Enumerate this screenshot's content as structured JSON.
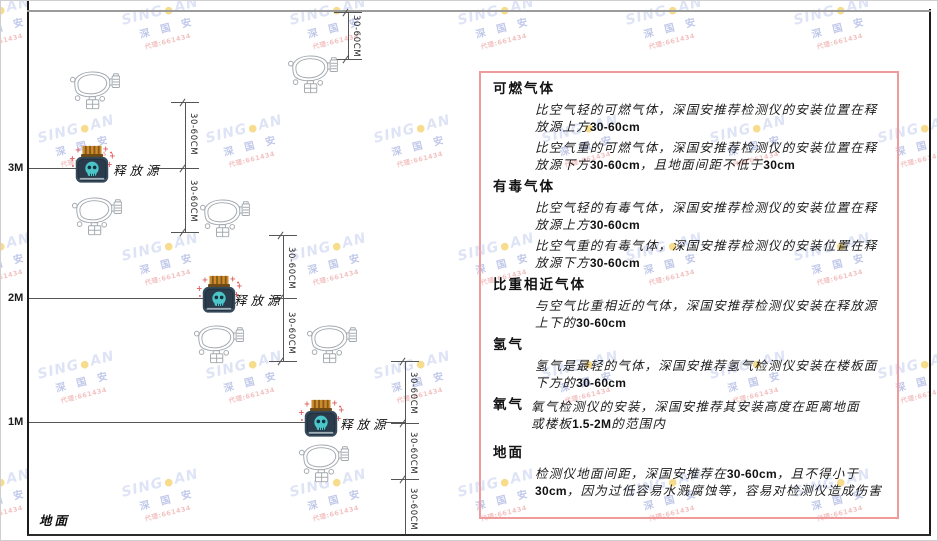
{
  "watermark": {
    "brand_left": "SING",
    "dot": "●",
    "brand_right": "AN",
    "cjk": "深 国 安",
    "sub": "代理:661434"
  },
  "diagram": {
    "dim_label": "30-60CM",
    "release_source_label": "释放源",
    "ground_label": "地面",
    "heights": [
      {
        "label": "3M"
      },
      {
        "label": "2M"
      },
      {
        "label": "1M"
      }
    ]
  },
  "panel": {
    "sections": [
      {
        "heading": "可燃气体",
        "paragraphs": [
          "比空气轻的可燃气体，深国安推荐检测仪的安装位置在释放源上方30-60cm",
          "比空气重的可燃气体，深国安推荐检测仪的安装位置在释放源下方30-60cm，且地面间距不低于30cm"
        ]
      },
      {
        "heading": "有毒气体",
        "paragraphs": [
          "比空气轻的有毒气体，深国安推荐检测仪的安装位置在释放源上方30-60cm",
          "比空气重的有毒气体，深国安推荐检测仪的安装位置在释放源下方30-60cm"
        ]
      },
      {
        "heading": "比重相近气体",
        "paragraphs": [
          "与空气比重相近的气体，深国安推荐检测仪安装在释放源上下的30-60cm"
        ]
      },
      {
        "heading": "氢气",
        "paragraphs": [
          "氢气是最轻的气体，深国安推荐氢气检测仪安装在楼板面下方的30-60cm"
        ]
      },
      {
        "heading": "氧气",
        "inline": true,
        "paragraphs": [
          "氧气检测仪的安装，深国安推荐其安装高度在距离地面或楼板1.5-2M的范围内"
        ]
      },
      {
        "heading": "地面",
        "gap_before": true,
        "paragraphs": [
          "检测仪地面间距，深国安推荐在30-60cm，且不得小于30cm，因为过低容易水溅腐蚀等，容易对检测仪造成伤害"
        ]
      }
    ]
  },
  "colors": {
    "panel_border": "#f09b9b",
    "line": "#555555",
    "wall": "#1b1b1b",
    "source_body": "#35495a",
    "source_cap": "#cd8c2e",
    "skull": "#4cc5c9",
    "sparkle": "#e25b5b",
    "watermark_blue": "#c4cff0",
    "watermark_navy": "#8d9cd8",
    "watermark_red": "#e89090",
    "watermark_dot": "#f0c030"
  }
}
